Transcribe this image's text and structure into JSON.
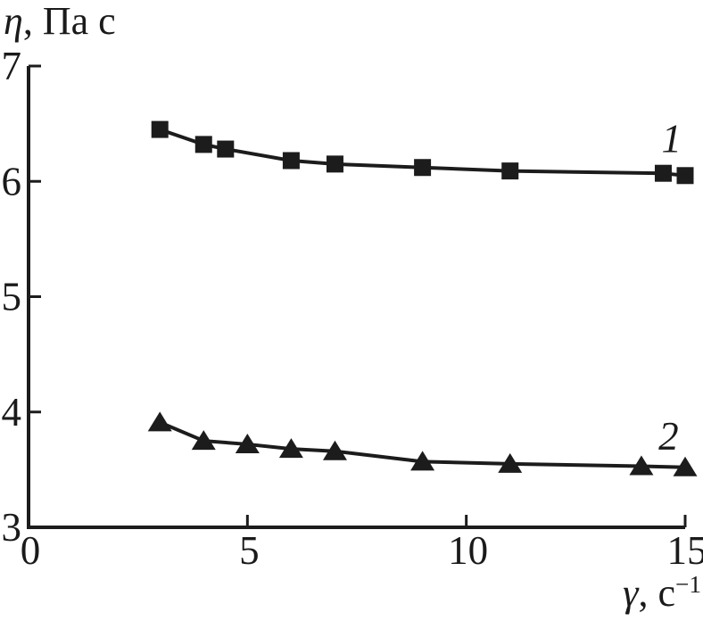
{
  "figure": {
    "y_axis_title": {
      "symbol": "η",
      "rest": ", Па с"
    },
    "x_axis_title": {
      "symbol": "γ",
      "rest": ", с",
      "superscript": "−1"
    }
  },
  "chart_data": {
    "type": "line",
    "title": "",
    "ylabel": "η, Па с",
    "xlabel": "γ, с⁻¹",
    "xlim": [
      0,
      15
    ],
    "ylim": [
      3,
      7
    ],
    "x_ticks": [
      0,
      5,
      10,
      15
    ],
    "y_ticks": [
      3,
      4,
      5,
      6,
      7
    ],
    "grid": false,
    "legend_position": "inline-right",
    "colors": {
      "line": "#1c1c1c",
      "text": "#1a1a1a",
      "background": "#ffffff"
    },
    "series": [
      {
        "name": "1",
        "marker": "square",
        "x": [
          3,
          4,
          4.5,
          6,
          7,
          9,
          11,
          14.5,
          15
        ],
        "y": [
          6.45,
          6.32,
          6.28,
          6.18,
          6.15,
          6.12,
          6.09,
          6.07,
          6.05
        ]
      },
      {
        "name": "2",
        "marker": "triangle",
        "x": [
          3,
          4,
          5,
          6,
          7,
          9,
          11,
          14,
          15
        ],
        "y": [
          3.91,
          3.75,
          3.72,
          3.68,
          3.66,
          3.57,
          3.55,
          3.53,
          3.52
        ]
      }
    ],
    "annotations": [
      {
        "text": "1",
        "x": 14.69,
        "y": 6.37
      },
      {
        "text": "2",
        "x": 14.62,
        "y": 3.79
      }
    ]
  }
}
